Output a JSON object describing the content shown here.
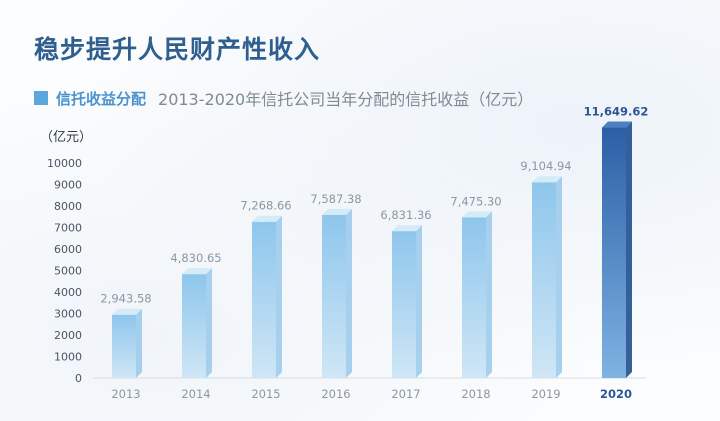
{
  "header": {
    "title": "稳步提升人民财产性收入",
    "subtitle_label": "信托收益分配",
    "subtitle_desc": "2013-2020年信托公司当年分配的信托收益（亿元）"
  },
  "colors": {
    "bar_light_top": "#8ec6ec",
    "bar_light_bottom": "#cfe6f6",
    "bar_dark_top": "#2a5fa5",
    "bar_dark_bottom": "#7fb3e3",
    "label": "#8b97a3",
    "highlight_label": "#2f5496"
  },
  "chart_data": {
    "type": "bar",
    "categories": [
      "2013",
      "2014",
      "2015",
      "2016",
      "2017",
      "2018",
      "2019",
      "2020"
    ],
    "values": [
      2943.58,
      4830.65,
      7268.66,
      7587.38,
      6831.36,
      7475.3,
      9104.94,
      11649.62
    ],
    "value_labels": [
      "2,943.58",
      "4,830.65",
      "7,268.66",
      "7,587.38",
      "6,831.36",
      "7,475.30",
      "9,104.94",
      "11,649.62"
    ],
    "ylabel": "（亿元）",
    "ylim": [
      0,
      10000
    ],
    "yticks": [
      0,
      1000,
      2000,
      3000,
      4000,
      5000,
      6000,
      7000,
      8000,
      9000,
      10000
    ],
    "highlight_category": "2020",
    "grid": false,
    "legend": "none"
  }
}
